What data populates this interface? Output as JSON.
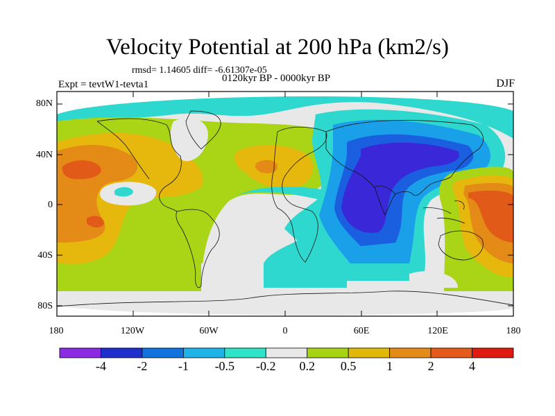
{
  "title": "Velocity Potential at 200 hPa (km2/s)",
  "stats_line": "rmsd= 1.14605 diff= -6.61307e-05",
  "period": "0120kyr BP - 0000kyr BP",
  "experiment": "Expt = tevtW1-tevta1",
  "season": "DJF",
  "y_axis_labels": [
    "80N",
    "40N",
    "0",
    "40S",
    "80S"
  ],
  "x_axis_labels": [
    "180",
    "120W",
    "60W",
    "0",
    "60E",
    "120E",
    "180"
  ],
  "colorbar": {
    "colors": [
      "#8a2be2",
      "#1f2fcc",
      "#1273dd",
      "#1fb3e8",
      "#2ee3c8",
      "#e8e8e8",
      "#a7d412",
      "#e0b80a",
      "#e38a17",
      "#e35a1a",
      "#e01a10"
    ],
    "labels": [
      "-4",
      "-2",
      "-1",
      "-0.5",
      "-0.2",
      "0.2",
      "0.5",
      "1",
      "2",
      "4"
    ]
  },
  "palette": {
    "neg4": "#3a28d8",
    "neg2": "#1a5fe0",
    "neg1": "#1aa0e8",
    "neg05": "#2fd8cf",
    "zero": "#e8e8e8",
    "pos02": "#a9d516",
    "pos05": "#e6b70c",
    "pos1": "#e38a17",
    "pos2": "#e25a17"
  }
}
